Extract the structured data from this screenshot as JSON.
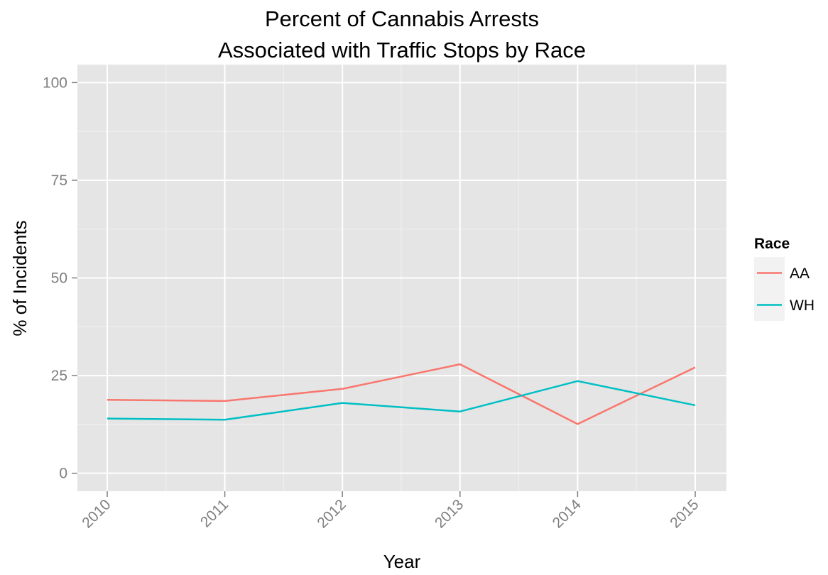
{
  "chart_data": {
    "type": "line",
    "title": "Percent of Cannabis Arrests",
    "subtitle": "Associated with Traffic Stops by Race",
    "xlabel": "Year",
    "ylabel": "% of Incidents",
    "x": [
      "2010",
      "2011",
      "2012",
      "2013",
      "2014",
      "2015"
    ],
    "yticks": [
      0,
      25,
      50,
      75,
      100
    ],
    "ylim": [
      -4.6,
      104.6
    ],
    "grid": true,
    "legend": {
      "title": "Race",
      "position": "right"
    },
    "series": [
      {
        "name": "AA",
        "color": "#F8766D",
        "values": [
          18.8,
          18.5,
          21.6,
          27.9,
          12.6,
          27.1
        ]
      },
      {
        "name": "WH",
        "color": "#00BFC4",
        "values": [
          14.0,
          13.7,
          18.0,
          15.8,
          23.6,
          17.4
        ]
      }
    ]
  }
}
